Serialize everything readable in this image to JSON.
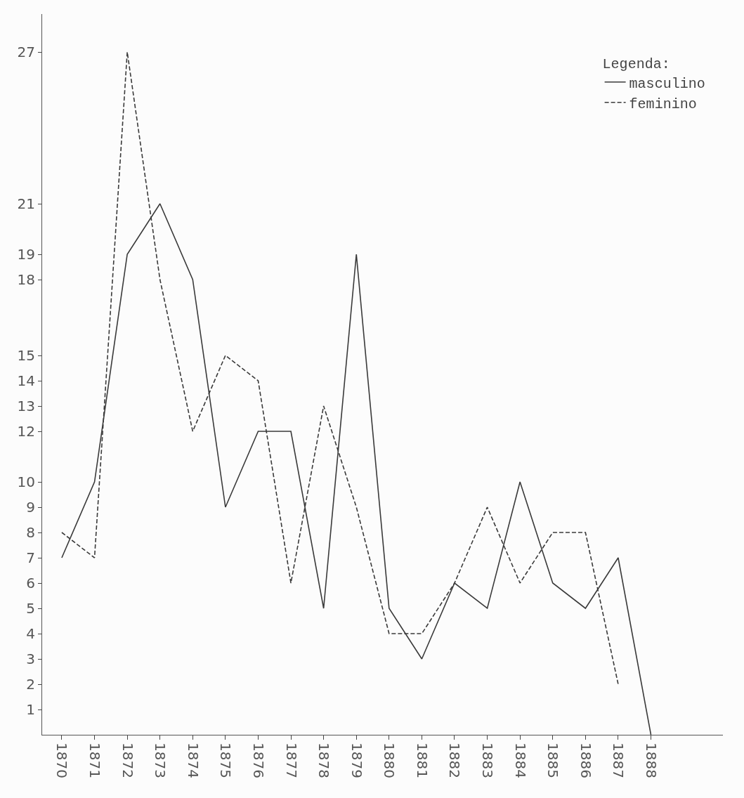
{
  "chart_data": {
    "type": "line",
    "legend_title": "Legenda:",
    "legend": "top right",
    "marker": "none",
    "categories": [
      "1870",
      "1871",
      "1872",
      "1873",
      "1874",
      "1875",
      "1876",
      "1877",
      "1878",
      "1879",
      "1880",
      "1881",
      "1882",
      "1883",
      "1884",
      "1885",
      "1886",
      "1887",
      "1888"
    ],
    "ylim": [
      0,
      28.5
    ],
    "yticks": [
      1,
      2,
      3,
      4,
      5,
      6,
      7,
      8,
      9,
      10,
      12,
      13,
      14,
      15,
      18,
      19,
      21,
      27
    ],
    "series": [
      {
        "name": "masculino",
        "color": "#3a3a3a",
        "line_style": "solid",
        "values": [
          7,
          10,
          19,
          21,
          18,
          9,
          12,
          12,
          5,
          19,
          5,
          3,
          6,
          5,
          10,
          6,
          5,
          7,
          0
        ]
      },
      {
        "name": "feminino",
        "color": "#3a3a3a",
        "line_style": "dashed",
        "values": [
          8,
          7,
          27,
          18,
          12,
          15,
          14,
          6,
          13,
          9,
          4,
          4,
          6,
          9,
          6,
          8,
          8,
          2,
          null
        ]
      }
    ]
  }
}
